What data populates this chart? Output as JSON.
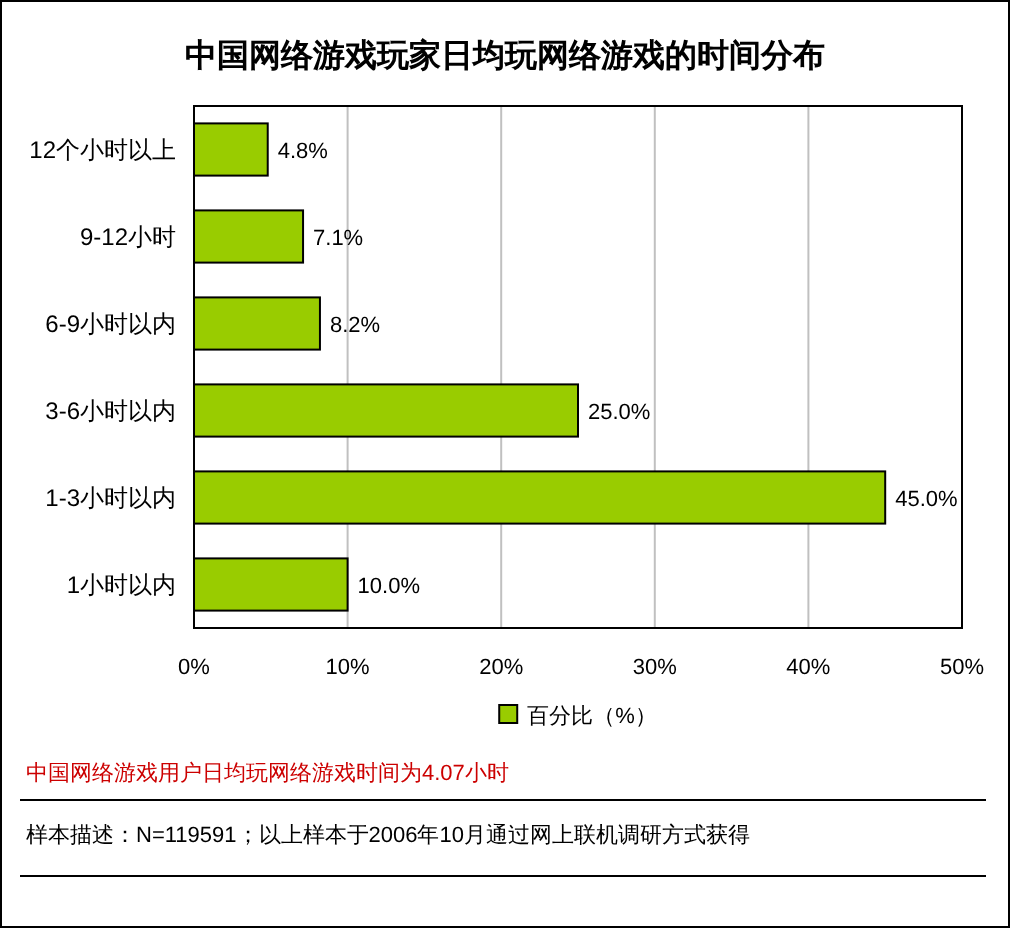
{
  "chart_data": {
    "type": "bar",
    "orientation": "horizontal",
    "title": "中国网络游戏玩家日均玩网络游戏的时间分布",
    "categories": [
      "12个小时以上",
      "9-12小时",
      "6-9小时以内",
      "3-6小时以内",
      "1-3小时以内",
      "1小时以内"
    ],
    "series": [
      {
        "name": "百分比（%）",
        "color": "#99cc00",
        "values": [
          4.8,
          7.1,
          8.2,
          25.0,
          45.0,
          10.0
        ],
        "value_labels": [
          "4.8%",
          "7.1%",
          "8.2%",
          "25.0%",
          "45.0%",
          "10.0%"
        ]
      }
    ],
    "xlim": [
      0,
      50
    ],
    "xticks": [
      {
        "value": 0,
        "label": "0%"
      },
      {
        "value": 10,
        "label": "10%"
      },
      {
        "value": 20,
        "label": "20%"
      },
      {
        "value": 30,
        "label": "30%"
      },
      {
        "value": 40,
        "label": "40%"
      },
      {
        "value": 50,
        "label": "50%"
      }
    ],
    "grid": "x",
    "legend": "bottom",
    "annotations": [
      "中国网络游戏用户日均玩网络游戏时间为4.07小时",
      "样本描述：N=119591；以上样本于2006年10月通过网上联机调研方式获得"
    ]
  }
}
